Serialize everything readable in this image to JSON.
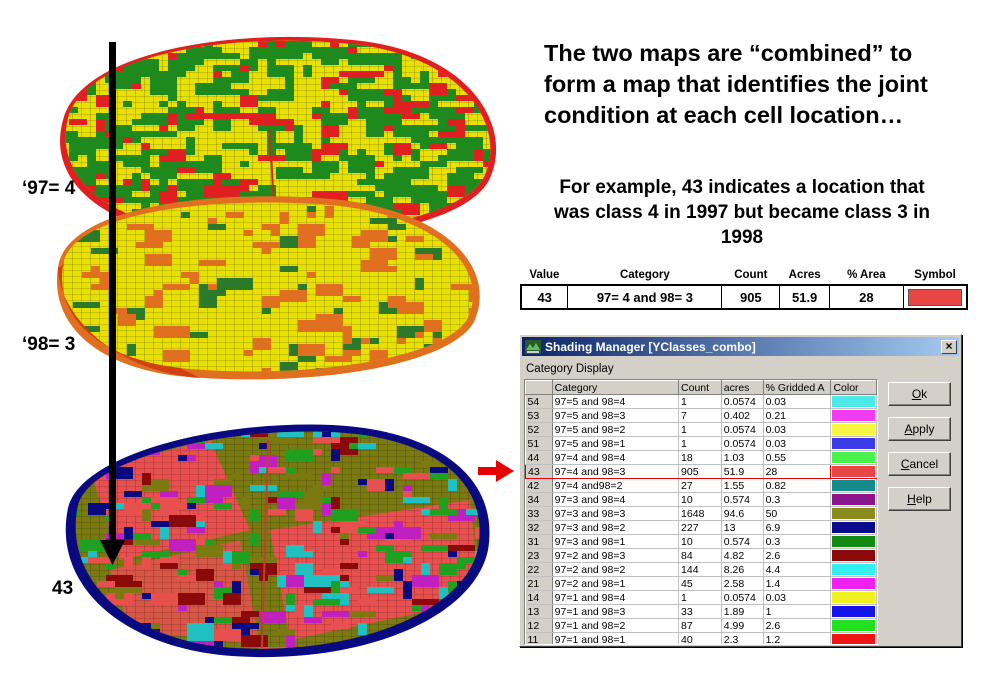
{
  "map_labels": {
    "top": "‘97= 4",
    "middle": "‘98= 3",
    "bottom": "43"
  },
  "headline": "The two maps are “combined” to form a map that identifies the joint condition at each cell location…",
  "example_text": "For example, 43 indicates a location that was class 4 in 1997 but became class 3 in 1998",
  "summary_table": {
    "headers": [
      "Value",
      "Category",
      "Count",
      "Acres",
      "% Area",
      "Symbol"
    ],
    "row": {
      "value": "43",
      "category": "97= 4 and 98= 3",
      "count": "905",
      "acres": "51.9",
      "pct_area": "28",
      "symbol_color": "#e84545"
    }
  },
  "dialog": {
    "title": "Shading Manager [YClasses_combo]",
    "close_glyph": "×",
    "group_label": "Category Display",
    "columns": [
      "",
      "Category",
      "Count",
      "acres",
      "% Gridded A",
      "Color"
    ],
    "rows": [
      {
        "num": "54",
        "category": "97=5 and 98=4",
        "count": "1",
        "acres": "0.0574",
        "pct": "0.03",
        "color": "#4de8e8"
      },
      {
        "num": "53",
        "category": "97=5 and 98=3",
        "count": "7",
        "acres": "0.402",
        "pct": "0.21",
        "color": "#f23cf2"
      },
      {
        "num": "52",
        "category": "97=5 and 98=2",
        "count": "1",
        "acres": "0.0574",
        "pct": "0.03",
        "color": "#f5f542"
      },
      {
        "num": "51",
        "category": "97=5 and 98=1",
        "count": "1",
        "acres": "0.0574",
        "pct": "0.03",
        "color": "#3a3ae8"
      },
      {
        "num": "44",
        "category": "97=4 and 98=4",
        "count": "18",
        "acres": "1.03",
        "pct": "0.55",
        "color": "#4cf04c"
      },
      {
        "num": "43",
        "category": "97=4 and 98=3",
        "count": "905",
        "acres": "51.9",
        "pct": "28",
        "color": "#e84545"
      },
      {
        "num": "42",
        "category": "97=4 and98=2",
        "count": "27",
        "acres": "1.55",
        "pct": "0.82",
        "color": "#148a8a"
      },
      {
        "num": "34",
        "category": "97=3 and 98=4",
        "count": "10",
        "acres": "0.574",
        "pct": "0.3",
        "color": "#8a148a"
      },
      {
        "num": "33",
        "category": "97=3 and 98=3",
        "count": "1648",
        "acres": "94.6",
        "pct": "50",
        "color": "#8a8a1e"
      },
      {
        "num": "32",
        "category": "97=3 and 98=2",
        "count": "227",
        "acres": "13",
        "pct": "6.9",
        "color": "#0a0a8a"
      },
      {
        "num": "31",
        "category": "97=3 and 98=1",
        "count": "10",
        "acres": "0.574",
        "pct": "0.3",
        "color": "#128a12"
      },
      {
        "num": "23",
        "category": "97=2 and 98=3",
        "count": "84",
        "acres": "4.82",
        "pct": "2.6",
        "color": "#8a0a0a"
      },
      {
        "num": "22",
        "category": "97=2 and 98=2",
        "count": "144",
        "acres": "8.26",
        "pct": "4.4",
        "color": "#33f0f0"
      },
      {
        "num": "21",
        "category": "97=2 and 98=1",
        "count": "45",
        "acres": "2.58",
        "pct": "1.4",
        "color": "#f020f0"
      },
      {
        "num": "14",
        "category": "97=1 and 98=4",
        "count": "1",
        "acres": "0.0574",
        "pct": "0.03",
        "color": "#f0f020"
      },
      {
        "num": "13",
        "category": "97=1 and 98=3",
        "count": "33",
        "acres": "1.89",
        "pct": "1",
        "color": "#1414e8"
      },
      {
        "num": "12",
        "category": "97=1 and 98=2",
        "count": "87",
        "acres": "4.99",
        "pct": "2.6",
        "color": "#20e020"
      },
      {
        "num": "11",
        "category": "97=1 and 98=1",
        "count": "40",
        "acres": "2.3",
        "pct": "1.2",
        "color": "#f01414"
      }
    ],
    "highlight_row": "43",
    "buttons": {
      "ok": {
        "u": "O",
        "rest": "k"
      },
      "apply": {
        "u": "A",
        "rest": "pply"
      },
      "cancel": {
        "u": "C",
        "rest": "ancel"
      },
      "help": {
        "u": "H",
        "rest": "elp"
      }
    }
  },
  "colors": {
    "arrow_red": "#e80000",
    "map97_yellow": "#e8e000",
    "map97_green": "#1e8a1e",
    "map97_red": "#e02020",
    "map98_yellow": "#e8e000",
    "map98_orange": "#e07020",
    "combo_olive": "#7a7a10",
    "combo_pink": "#e85050",
    "combo_navy": "#0a0a80"
  }
}
